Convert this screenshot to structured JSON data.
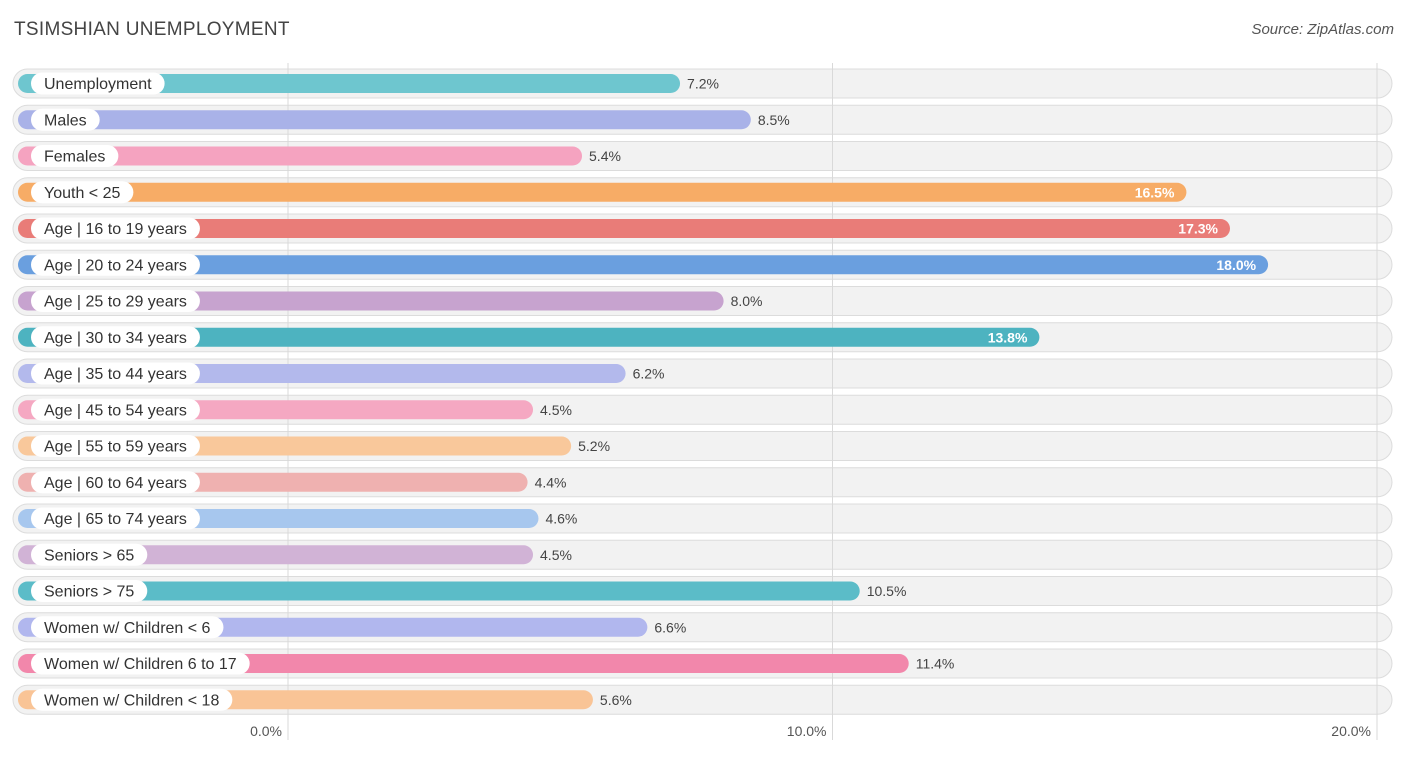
{
  "header": {
    "title": "TSIMSHIAN UNEMPLOYMENT",
    "source": "Source: ZipAtlas.com"
  },
  "chart_data": {
    "type": "bar",
    "orientation": "horizontal",
    "title": "TSIMSHIAN UNEMPLOYMENT",
    "xlim": [
      0,
      20
    ],
    "x_ticks": [
      {
        "value": 0,
        "label": "0.0%"
      },
      {
        "value": 10,
        "label": "10.0%"
      },
      {
        "value": 20,
        "label": "20.0%"
      }
    ],
    "grid": true,
    "categories": [
      "Unemployment",
      "Males",
      "Females",
      "Youth < 25",
      "Age | 16 to 19 years",
      "Age | 20 to 24 years",
      "Age | 25 to 29 years",
      "Age | 30 to 34 years",
      "Age | 35 to 44 years",
      "Age | 45 to 54 years",
      "Age | 55 to 59 years",
      "Age | 60 to 64 years",
      "Age | 65 to 74 years",
      "Seniors > 65",
      "Seniors > 75",
      "Women w/ Children < 6",
      "Women w/ Children 6 to 17",
      "Women w/ Children < 18"
    ],
    "values": [
      7.2,
      8.5,
      5.4,
      16.5,
      17.3,
      18.0,
      8.0,
      13.8,
      6.2,
      4.5,
      5.2,
      4.4,
      4.6,
      4.5,
      10.5,
      6.6,
      11.4,
      5.6
    ],
    "value_labels": [
      "7.2%",
      "8.5%",
      "5.4%",
      "16.5%",
      "17.3%",
      "18.0%",
      "8.0%",
      "13.8%",
      "6.2%",
      "4.5%",
      "5.2%",
      "4.4%",
      "4.6%",
      "4.5%",
      "10.5%",
      "6.6%",
      "11.4%",
      "5.6%"
    ],
    "colors": [
      "#6ec6cf",
      "#a9b2e8",
      "#f5a3c0",
      "#f7ac66",
      "#e97c78",
      "#6a9fdf",
      "#c7a3cf",
      "#4db3c0",
      "#b3b9ec",
      "#f5a8c2",
      "#f9c89b",
      "#efb1b0",
      "#a7c7ee",
      "#d1b3d6",
      "#5bbcc8",
      "#b1b7ee",
      "#f287ab",
      "#f9c496"
    ]
  }
}
